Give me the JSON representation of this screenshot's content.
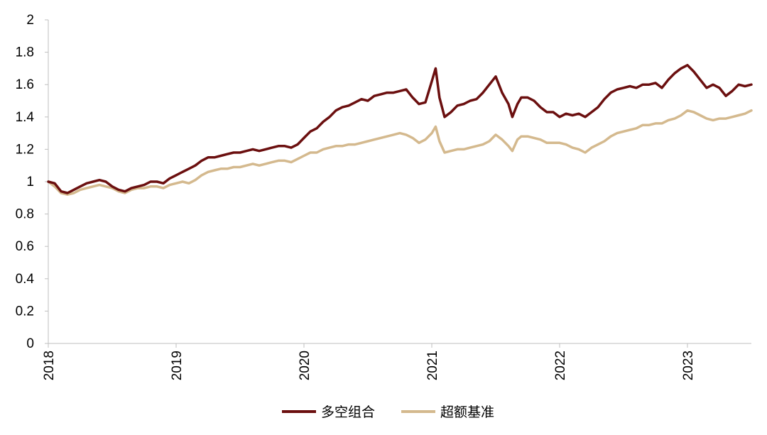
{
  "chart_data": {
    "type": "line",
    "title": "",
    "xlabel": "",
    "ylabel": "",
    "ylim": [
      0,
      2
    ],
    "y_ticks": [
      "0",
      "0.2",
      "0.4",
      "0.6",
      "0.8",
      "1",
      "1.2",
      "1.4",
      "1.6",
      "1.8",
      "2"
    ],
    "x_ticks": [
      "2018",
      "2019",
      "2020",
      "2021",
      "2022",
      "2023"
    ],
    "xlim": [
      2018.0,
      2023.5
    ],
    "grid": false,
    "legend_position": "bottom",
    "series": [
      {
        "name": "多空组合",
        "color": "#6b0f0f",
        "x": [
          2018.0,
          2018.05,
          2018.1,
          2018.15,
          2018.2,
          2018.25,
          2018.3,
          2018.35,
          2018.4,
          2018.45,
          2018.5,
          2018.55,
          2018.6,
          2018.65,
          2018.7,
          2018.75,
          2018.8,
          2018.85,
          2018.9,
          2018.95,
          2019.0,
          2019.05,
          2019.1,
          2019.15,
          2019.2,
          2019.25,
          2019.3,
          2019.35,
          2019.4,
          2019.45,
          2019.5,
          2019.55,
          2019.6,
          2019.65,
          2019.7,
          2019.75,
          2019.8,
          2019.85,
          2019.9,
          2019.95,
          2020.0,
          2020.05,
          2020.1,
          2020.15,
          2020.2,
          2020.25,
          2020.3,
          2020.35,
          2020.4,
          2020.45,
          2020.5,
          2020.55,
          2020.6,
          2020.65,
          2020.7,
          2020.75,
          2020.8,
          2020.85,
          2020.9,
          2020.95,
          2021.0,
          2021.03,
          2021.06,
          2021.1,
          2021.15,
          2021.2,
          2021.25,
          2021.3,
          2021.35,
          2021.4,
          2021.45,
          2021.5,
          2021.55,
          2021.6,
          2021.63,
          2021.67,
          2021.7,
          2021.75,
          2021.8,
          2021.85,
          2021.9,
          2021.95,
          2022.0,
          2022.05,
          2022.1,
          2022.15,
          2022.2,
          2022.25,
          2022.3,
          2022.35,
          2022.4,
          2022.45,
          2022.5,
          2022.55,
          2022.6,
          2022.65,
          2022.7,
          2022.75,
          2022.8,
          2022.85,
          2022.9,
          2022.95,
          2023.0,
          2023.05,
          2023.1,
          2023.15,
          2023.2,
          2023.25,
          2023.3,
          2023.35,
          2023.4,
          2023.45,
          2023.5
        ],
        "values": [
          1.0,
          0.99,
          0.94,
          0.93,
          0.95,
          0.97,
          0.99,
          1.0,
          1.01,
          1.0,
          0.97,
          0.95,
          0.94,
          0.96,
          0.97,
          0.98,
          1.0,
          1.0,
          0.99,
          1.02,
          1.04,
          1.06,
          1.08,
          1.1,
          1.13,
          1.15,
          1.15,
          1.16,
          1.17,
          1.18,
          1.18,
          1.19,
          1.2,
          1.19,
          1.2,
          1.21,
          1.22,
          1.22,
          1.21,
          1.23,
          1.27,
          1.31,
          1.33,
          1.37,
          1.4,
          1.44,
          1.46,
          1.47,
          1.49,
          1.51,
          1.5,
          1.53,
          1.54,
          1.55,
          1.55,
          1.56,
          1.57,
          1.52,
          1.48,
          1.49,
          1.62,
          1.7,
          1.52,
          1.4,
          1.43,
          1.47,
          1.48,
          1.5,
          1.51,
          1.55,
          1.6,
          1.65,
          1.55,
          1.48,
          1.4,
          1.48,
          1.52,
          1.52,
          1.5,
          1.46,
          1.43,
          1.43,
          1.4,
          1.42,
          1.41,
          1.42,
          1.4,
          1.43,
          1.46,
          1.51,
          1.55,
          1.57,
          1.58,
          1.59,
          1.58,
          1.6,
          1.6,
          1.61,
          1.58,
          1.63,
          1.67,
          1.7,
          1.72,
          1.68,
          1.63,
          1.58,
          1.6,
          1.58,
          1.53,
          1.56,
          1.6,
          1.59,
          1.6
        ]
      },
      {
        "name": "超额基准",
        "color": "#d4b98e",
        "x": [
          2018.0,
          2018.05,
          2018.1,
          2018.15,
          2018.2,
          2018.25,
          2018.3,
          2018.35,
          2018.4,
          2018.45,
          2018.5,
          2018.55,
          2018.6,
          2018.65,
          2018.7,
          2018.75,
          2018.8,
          2018.85,
          2018.9,
          2018.95,
          2019.0,
          2019.05,
          2019.1,
          2019.15,
          2019.2,
          2019.25,
          2019.3,
          2019.35,
          2019.4,
          2019.45,
          2019.5,
          2019.55,
          2019.6,
          2019.65,
          2019.7,
          2019.75,
          2019.8,
          2019.85,
          2019.9,
          2019.95,
          2020.0,
          2020.05,
          2020.1,
          2020.15,
          2020.2,
          2020.25,
          2020.3,
          2020.35,
          2020.4,
          2020.45,
          2020.5,
          2020.55,
          2020.6,
          2020.65,
          2020.7,
          2020.75,
          2020.8,
          2020.85,
          2020.9,
          2020.95,
          2021.0,
          2021.03,
          2021.06,
          2021.1,
          2021.15,
          2021.2,
          2021.25,
          2021.3,
          2021.35,
          2021.4,
          2021.45,
          2021.5,
          2021.55,
          2021.6,
          2021.63,
          2021.67,
          2021.7,
          2021.75,
          2021.8,
          2021.85,
          2021.9,
          2021.95,
          2022.0,
          2022.05,
          2022.1,
          2022.15,
          2022.2,
          2022.25,
          2022.3,
          2022.35,
          2022.4,
          2022.45,
          2022.5,
          2022.55,
          2022.6,
          2022.65,
          2022.7,
          2022.75,
          2022.8,
          2022.85,
          2022.9,
          2022.95,
          2023.0,
          2023.05,
          2023.1,
          2023.15,
          2023.2,
          2023.25,
          2023.3,
          2023.35,
          2023.4,
          2023.45,
          2023.5
        ],
        "values": [
          1.0,
          0.97,
          0.93,
          0.92,
          0.93,
          0.95,
          0.96,
          0.97,
          0.98,
          0.97,
          0.96,
          0.94,
          0.93,
          0.95,
          0.96,
          0.96,
          0.97,
          0.97,
          0.96,
          0.98,
          0.99,
          1.0,
          0.99,
          1.01,
          1.04,
          1.06,
          1.07,
          1.08,
          1.08,
          1.09,
          1.09,
          1.1,
          1.11,
          1.1,
          1.11,
          1.12,
          1.13,
          1.13,
          1.12,
          1.14,
          1.16,
          1.18,
          1.18,
          1.2,
          1.21,
          1.22,
          1.22,
          1.23,
          1.23,
          1.24,
          1.25,
          1.26,
          1.27,
          1.28,
          1.29,
          1.3,
          1.29,
          1.27,
          1.24,
          1.26,
          1.3,
          1.34,
          1.25,
          1.18,
          1.19,
          1.2,
          1.2,
          1.21,
          1.22,
          1.23,
          1.25,
          1.29,
          1.26,
          1.22,
          1.19,
          1.26,
          1.28,
          1.28,
          1.27,
          1.26,
          1.24,
          1.24,
          1.24,
          1.23,
          1.21,
          1.2,
          1.18,
          1.21,
          1.23,
          1.25,
          1.28,
          1.3,
          1.31,
          1.32,
          1.33,
          1.35,
          1.35,
          1.36,
          1.36,
          1.38,
          1.39,
          1.41,
          1.44,
          1.43,
          1.41,
          1.39,
          1.38,
          1.39,
          1.39,
          1.4,
          1.41,
          1.42,
          1.44
        ]
      }
    ]
  }
}
